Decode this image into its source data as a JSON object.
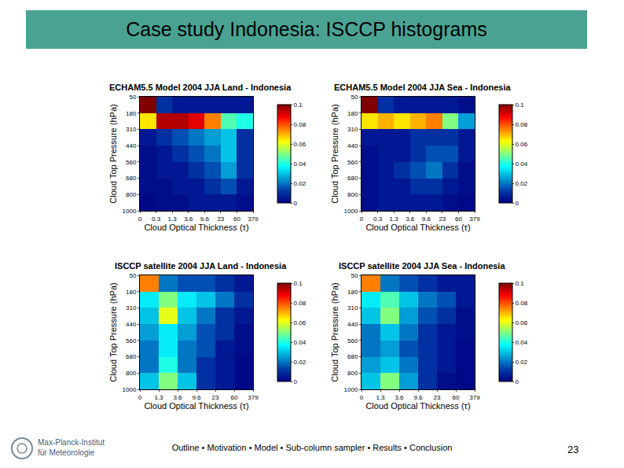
{
  "slide": {
    "title": "Case study Indonesia: ISCCP histograms",
    "footer": "Outline • Motivation • Model • Sub-column sampler • Results • Conclusion",
    "page": 23,
    "institute": [
      "Max-Planck-Institut",
      "für Meteorologie"
    ]
  },
  "chart_data": [
    {
      "type": "heatmap",
      "title": "ECHAM5.5 Model 2004 JJA Land - Indonesia",
      "x_label": "Cloud Optical Thickness (τ)",
      "y_label": "Cloud Top Pressure (hPa)",
      "x_edges": [
        0,
        0.3,
        1.3,
        3.6,
        9.6,
        23,
        60,
        379
      ],
      "y_edges": [
        50,
        180,
        310,
        440,
        560,
        680,
        800,
        1000
      ],
      "cells": [
        [
          0.1,
          0.01,
          0.005,
          0.005,
          0.005,
          0.005,
          0.005
        ],
        [
          0.065,
          0.095,
          0.095,
          0.09,
          0.075,
          0.045,
          0.04
        ],
        [
          0.005,
          0.01,
          0.015,
          0.02,
          0.025,
          0.03,
          0.01
        ],
        [
          0.003,
          0.005,
          0.01,
          0.015,
          0.02,
          0.03,
          0.01
        ],
        [
          0.003,
          0.005,
          0.005,
          0.01,
          0.015,
          0.025,
          0.01
        ],
        [
          0.003,
          0.003,
          0.005,
          0.005,
          0.01,
          0.015,
          0.005
        ],
        [
          0.002,
          0.003,
          0.003,
          0.005,
          0.005,
          0.005,
          0.003
        ]
      ],
      "color": "jet",
      "zlim": [
        0,
        0.1
      ],
      "zticks": [
        0,
        0.02,
        0.04,
        0.06,
        0.08,
        0.1
      ]
    },
    {
      "type": "heatmap",
      "title": "ECHAM5.5 Model 2004 JJA Sea - Indonesia",
      "x_label": "Cloud Optical Thickness (τ)",
      "y_label": "Cloud Top Pressure (hPa)",
      "x_edges": [
        0,
        0.3,
        1.3,
        3.6,
        9.6,
        23,
        60,
        379
      ],
      "y_edges": [
        50,
        180,
        310,
        440,
        560,
        680,
        800,
        1000
      ],
      "cells": [
        [
          0.1,
          0.01,
          0.005,
          0.005,
          0.005,
          0.005,
          0.003
        ],
        [
          0.065,
          0.07,
          0.065,
          0.07,
          0.075,
          0.05,
          0.025
        ],
        [
          0.005,
          0.005,
          0.005,
          0.01,
          0.01,
          0.01,
          0.005
        ],
        [
          0.003,
          0.005,
          0.005,
          0.01,
          0.015,
          0.015,
          0.005
        ],
        [
          0.003,
          0.005,
          0.01,
          0.015,
          0.02,
          0.01,
          0.003
        ],
        [
          0.003,
          0.005,
          0.005,
          0.01,
          0.01,
          0.005,
          0.003
        ],
        [
          0.003,
          0.005,
          0.005,
          0.005,
          0.005,
          0.003,
          0.002
        ]
      ],
      "color": "jet",
      "zlim": [
        0,
        0.1
      ],
      "zticks": [
        0,
        0.02,
        0.04,
        0.06,
        0.08,
        0.1
      ]
    },
    {
      "type": "heatmap",
      "title": "ISCCP satellite 2004 JJA Land - Indonesia",
      "x_label": "Cloud Optical Thickness (τ)",
      "y_label": "Cloud Top Pressure (hPa)",
      "x_edges": [
        0,
        1.3,
        3.6,
        9.6,
        23,
        60,
        379
      ],
      "y_edges": [
        50,
        180,
        310,
        440,
        560,
        680,
        800,
        1000
      ],
      "cells": [
        [
          0.075,
          0.02,
          0.015,
          0.015,
          0.01,
          0.005
        ],
        [
          0.035,
          0.05,
          0.035,
          0.03,
          0.02,
          0.01
        ],
        [
          0.03,
          0.06,
          0.03,
          0.02,
          0.01,
          0.005
        ],
        [
          0.025,
          0.035,
          0.025,
          0.015,
          0.01,
          0.003
        ],
        [
          0.02,
          0.035,
          0.02,
          0.015,
          0.005,
          0.003
        ],
        [
          0.02,
          0.04,
          0.02,
          0.01,
          0.005,
          0.002
        ],
        [
          0.03,
          0.05,
          0.03,
          0.01,
          0.005,
          0.002
        ]
      ],
      "color": "jet",
      "zlim": [
        0,
        0.1
      ],
      "zticks": [
        0,
        0.02,
        0.04,
        0.06,
        0.08,
        0.1
      ]
    },
    {
      "type": "heatmap",
      "title": "ISCCP satellite 2004 JJA Sea - Indonesia",
      "x_label": "Cloud Optical Thickness (τ)",
      "y_label": "Cloud Top Pressure (hPa)",
      "x_edges": [
        0,
        1.3,
        3.6,
        9.6,
        23,
        60,
        379
      ],
      "y_edges": [
        50,
        180,
        310,
        440,
        560,
        680,
        800,
        1000
      ],
      "cells": [
        [
          0.075,
          0.02,
          0.015,
          0.01,
          0.005,
          0.005
        ],
        [
          0.035,
          0.045,
          0.03,
          0.02,
          0.015,
          0.005
        ],
        [
          0.03,
          0.05,
          0.025,
          0.015,
          0.01,
          0.003
        ],
        [
          0.02,
          0.03,
          0.02,
          0.01,
          0.005,
          0.003
        ],
        [
          0.02,
          0.025,
          0.015,
          0.01,
          0.005,
          0.002
        ],
        [
          0.025,
          0.03,
          0.02,
          0.01,
          0.005,
          0.002
        ],
        [
          0.03,
          0.05,
          0.025,
          0.01,
          0.003,
          0.002
        ]
      ],
      "color": "jet",
      "zlim": [
        0,
        0.1
      ],
      "zticks": [
        0,
        0.02,
        0.04,
        0.06,
        0.08,
        0.1
      ]
    }
  ]
}
